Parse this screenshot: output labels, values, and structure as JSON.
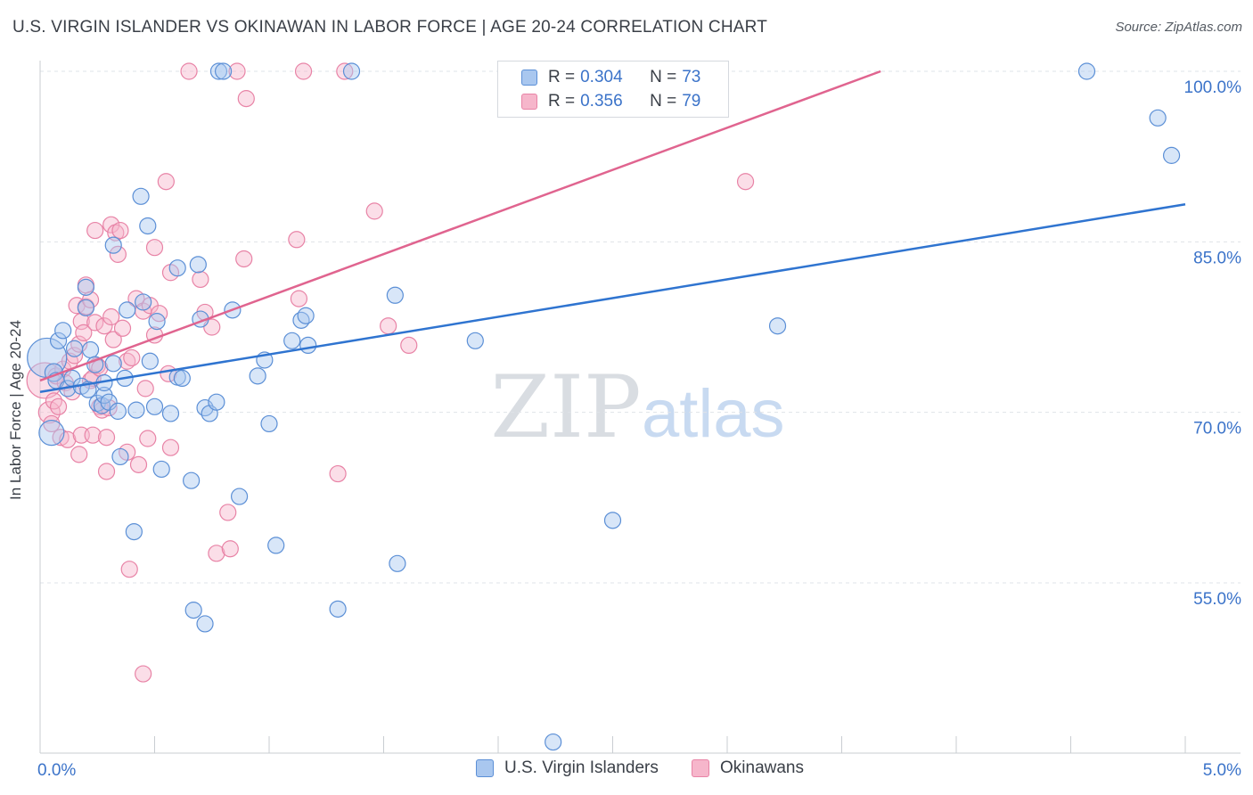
{
  "header": {
    "title": "U.S. VIRGIN ISLANDER VS OKINAWAN IN LABOR FORCE | AGE 20-24 CORRELATION CHART",
    "source": "Source: ZipAtlas.com"
  },
  "legend": {
    "series1": {
      "r_label": "R =",
      "r_value": "0.304",
      "n_label": "N =",
      "n_value": "73"
    },
    "series2": {
      "r_label": "R =",
      "r_value": "0.356",
      "n_label": "N =",
      "n_value": "79"
    }
  },
  "bottom_legend": {
    "series1": "U.S. Virgin Islanders",
    "series2": "Okinawans"
  },
  "watermark": {
    "zip": "ZIP",
    "atlas": "atlas"
  },
  "colors": {
    "blue_fill": "#a9c7ef",
    "blue_stroke": "#5b8fd6",
    "blue_line": "#2f74d0",
    "pink_fill": "#f6b6cb",
    "pink_stroke": "#e883a6",
    "pink_line": "#e0648f",
    "grid": "#dfe3e8",
    "tick_label": "#3b73c9"
  },
  "chart_data": {
    "type": "scatter",
    "title": "U.S. VIRGIN ISLANDER VS OKINAWAN IN LABOR FORCE | AGE 20-24 CORRELATION CHART",
    "xlabel": "",
    "ylabel": "In Labor Force | Age 20-24",
    "xlim": [
      0,
      5
    ],
    "ylim": [
      40,
      101
    ],
    "x_tick_labels": [
      {
        "value": 0,
        "label": "0.0%"
      },
      {
        "value": 5,
        "label": "5.0%"
      }
    ],
    "y_tick_labels": [
      {
        "value": 100,
        "label": "100.0%"
      },
      {
        "value": 85,
        "label": "85.0%"
      },
      {
        "value": 70,
        "label": "70.0%"
      },
      {
        "value": 55,
        "label": "55.0%"
      }
    ],
    "y_gridlines": [
      100,
      85,
      70,
      55
    ],
    "x_minor_ticks": [
      0,
      0.5,
      1.0,
      1.5,
      2.0,
      2.5,
      3.0,
      3.5,
      4.0,
      4.5,
      5.0
    ],
    "series": [
      {
        "name": "U.S. Virgin Islanders",
        "color": "blue",
        "trend": {
          "x0": 0.0,
          "y0": 71.8,
          "x1": 5.0,
          "y1": 88.3
        },
        "points": [
          [
            0.03,
            74.8,
            22
          ],
          [
            0.05,
            68.2,
            14
          ],
          [
            0.06,
            73.5,
            10
          ],
          [
            0.07,
            72.8,
            9
          ],
          [
            0.08,
            76.3,
            9
          ],
          [
            0.1,
            77.2,
            9
          ],
          [
            0.12,
            72.1,
            9
          ],
          [
            0.14,
            73.0,
            9
          ],
          [
            0.15,
            75.6,
            9
          ],
          [
            0.18,
            72.3,
            9
          ],
          [
            0.2,
            81.0,
            9
          ],
          [
            0.2,
            79.2,
            9
          ],
          [
            0.21,
            72.0,
            9
          ],
          [
            0.22,
            75.5,
            9
          ],
          [
            0.24,
            74.2,
            9
          ],
          [
            0.25,
            70.8,
            9
          ],
          [
            0.27,
            70.6,
            9
          ],
          [
            0.28,
            71.5,
            9
          ],
          [
            0.28,
            72.6,
            9
          ],
          [
            0.3,
            70.9,
            9
          ],
          [
            0.32,
            84.7,
            9
          ],
          [
            0.32,
            74.3,
            9
          ],
          [
            0.34,
            70.1,
            9
          ],
          [
            0.35,
            66.1,
            9
          ],
          [
            0.37,
            73.0,
            9
          ],
          [
            0.38,
            79.0,
            9
          ],
          [
            0.41,
            59.5,
            9
          ],
          [
            0.42,
            70.2,
            9
          ],
          [
            0.44,
            89.0,
            9
          ],
          [
            0.45,
            79.7,
            9
          ],
          [
            0.47,
            86.4,
            9
          ],
          [
            0.48,
            74.5,
            9
          ],
          [
            0.5,
            70.5,
            9
          ],
          [
            0.51,
            78.0,
            9
          ],
          [
            0.53,
            65.0,
            9
          ],
          [
            0.57,
            69.9,
            9
          ],
          [
            0.6,
            73.1,
            9
          ],
          [
            0.6,
            82.7,
            9
          ],
          [
            0.62,
            73.0,
            9
          ],
          [
            0.66,
            64.0,
            9
          ],
          [
            0.67,
            52.6,
            9
          ],
          [
            0.69,
            83.0,
            9
          ],
          [
            0.7,
            78.2,
            9
          ],
          [
            0.72,
            51.4,
            9
          ],
          [
            0.72,
            70.4,
            9
          ],
          [
            0.74,
            69.9,
            9
          ],
          [
            0.77,
            70.9,
            9
          ],
          [
            0.78,
            100.0,
            9
          ],
          [
            0.8,
            100.0,
            9
          ],
          [
            0.84,
            79.0,
            9
          ],
          [
            0.87,
            62.6,
            9
          ],
          [
            0.95,
            73.2,
            9
          ],
          [
            0.98,
            74.6,
            9
          ],
          [
            1.0,
            69.0,
            9
          ],
          [
            1.03,
            58.3,
            9
          ],
          [
            1.1,
            76.3,
            9
          ],
          [
            1.14,
            78.1,
            9
          ],
          [
            1.16,
            78.5,
            9
          ],
          [
            1.17,
            75.9,
            9
          ],
          [
            1.3,
            52.7,
            9
          ],
          [
            1.36,
            100.0,
            9
          ],
          [
            1.55,
            80.3,
            9
          ],
          [
            1.56,
            56.7,
            9
          ],
          [
            1.9,
            76.3,
            9
          ],
          [
            2.24,
            41.0,
            9
          ],
          [
            2.5,
            60.5,
            9
          ],
          [
            3.22,
            77.6,
            9
          ],
          [
            4.57,
            100.0,
            9
          ],
          [
            4.88,
            95.9,
            9
          ],
          [
            4.94,
            92.6,
            9
          ]
        ]
      },
      {
        "name": "Okinawans",
        "color": "pink",
        "trend": {
          "x0": 0.0,
          "y0": 72.8,
          "x1": 3.67,
          "y1": 100.0
        },
        "points": [
          [
            0.02,
            72.8,
            20
          ],
          [
            0.04,
            70.0,
            12
          ],
          [
            0.05,
            69.0,
            9
          ],
          [
            0.06,
            71.0,
            9
          ],
          [
            0.07,
            73.2,
            9
          ],
          [
            0.08,
            70.5,
            9
          ],
          [
            0.09,
            67.8,
            9
          ],
          [
            0.1,
            73.8,
            9
          ],
          [
            0.11,
            72.6,
            9
          ],
          [
            0.12,
            67.6,
            9
          ],
          [
            0.13,
            74.5,
            9
          ],
          [
            0.14,
            71.8,
            9
          ],
          [
            0.15,
            75.0,
            9
          ],
          [
            0.16,
            79.4,
            9
          ],
          [
            0.17,
            76.0,
            9
          ],
          [
            0.17,
            66.3,
            9
          ],
          [
            0.18,
            78.0,
            9
          ],
          [
            0.18,
            68.0,
            9
          ],
          [
            0.19,
            77.0,
            9
          ],
          [
            0.2,
            79.3,
            9
          ],
          [
            0.2,
            81.2,
            9
          ],
          [
            0.22,
            72.8,
            9
          ],
          [
            0.22,
            79.9,
            9
          ],
          [
            0.23,
            68.0,
            9
          ],
          [
            0.23,
            73.0,
            9
          ],
          [
            0.24,
            86.0,
            9
          ],
          [
            0.24,
            77.9,
            9
          ],
          [
            0.25,
            74.1,
            9
          ],
          [
            0.26,
            73.9,
            9
          ],
          [
            0.26,
            70.5,
            9
          ],
          [
            0.27,
            70.2,
            9
          ],
          [
            0.28,
            77.6,
            9
          ],
          [
            0.29,
            64.8,
            9
          ],
          [
            0.29,
            67.8,
            9
          ],
          [
            0.3,
            70.4,
            9
          ],
          [
            0.31,
            86.5,
            9
          ],
          [
            0.31,
            78.4,
            9
          ],
          [
            0.32,
            76.4,
            9
          ],
          [
            0.33,
            85.8,
            9
          ],
          [
            0.34,
            83.9,
            9
          ],
          [
            0.35,
            86.0,
            9
          ],
          [
            0.36,
            77.4,
            9
          ],
          [
            0.38,
            74.5,
            9
          ],
          [
            0.38,
            66.5,
            9
          ],
          [
            0.39,
            56.2,
            9
          ],
          [
            0.4,
            74.8,
            9
          ],
          [
            0.42,
            80.0,
            9
          ],
          [
            0.43,
            65.4,
            9
          ],
          [
            0.45,
            78.9,
            9
          ],
          [
            0.45,
            47.0,
            9
          ],
          [
            0.46,
            72.1,
            9
          ],
          [
            0.47,
            67.7,
            9
          ],
          [
            0.48,
            79.4,
            9
          ],
          [
            0.5,
            84.5,
            9
          ],
          [
            0.5,
            76.8,
            9
          ],
          [
            0.52,
            78.7,
            9
          ],
          [
            0.55,
            90.3,
            9
          ],
          [
            0.56,
            73.4,
            9
          ],
          [
            0.57,
            82.3,
            9
          ],
          [
            0.57,
            66.9,
            9
          ],
          [
            0.65,
            100.0,
            9
          ],
          [
            0.7,
            81.7,
            9
          ],
          [
            0.72,
            78.8,
            9
          ],
          [
            0.75,
            77.5,
            9
          ],
          [
            0.77,
            57.6,
            9
          ],
          [
            0.82,
            61.2,
            9
          ],
          [
            0.83,
            58.0,
            9
          ],
          [
            0.86,
            100.0,
            9
          ],
          [
            0.89,
            83.5,
            9
          ],
          [
            0.9,
            97.6,
            9
          ],
          [
            1.12,
            85.2,
            9
          ],
          [
            1.13,
            80.0,
            9
          ],
          [
            1.15,
            100.0,
            9
          ],
          [
            1.3,
            64.6,
            9
          ],
          [
            1.33,
            100.0,
            9
          ],
          [
            1.46,
            87.7,
            9
          ],
          [
            1.52,
            77.6,
            9
          ],
          [
            1.61,
            75.9,
            9
          ],
          [
            3.08,
            90.3,
            9
          ]
        ]
      }
    ]
  }
}
